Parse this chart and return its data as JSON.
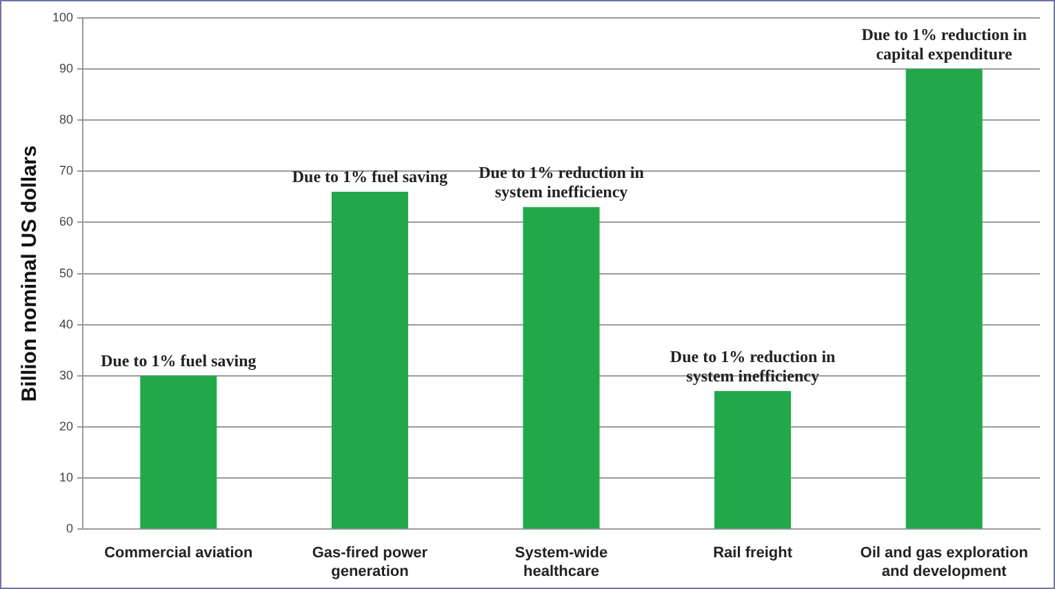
{
  "chart_data": {
    "type": "bar",
    "ylabel": "Billion nominal US dollars",
    "categories": [
      "Commercial aviation",
      "Gas-fired power generation",
      "System-wide healthcare",
      "Rail freight",
      "Oil and gas exploration and development"
    ],
    "values": [
      30,
      66,
      63,
      27,
      90
    ],
    "color": "#22a84a",
    "ylim": [
      0,
      100
    ],
    "yticks": [
      0,
      10,
      20,
      30,
      40,
      50,
      60,
      70,
      80,
      90,
      100
    ],
    "grid": "y",
    "annotations": [
      {
        "text": "Due to 1% fuel saving",
        "x": "Commercial aviation",
        "y": 30
      },
      {
        "text": "Due to 1% fuel saving",
        "x": "Gas-fired power generation",
        "y": 66
      },
      {
        "text": "Due to 1% reduction in system inefficiency",
        "x": "System-wide healthcare",
        "y": 63
      },
      {
        "text": "Due to 1% reduction in system inefficiency",
        "x": "Rail freight",
        "y": 27
      },
      {
        "text": "Due to 1% reduction in capital expenditure",
        "x": "Oil and gas exploration and development",
        "y": 90
      }
    ]
  }
}
